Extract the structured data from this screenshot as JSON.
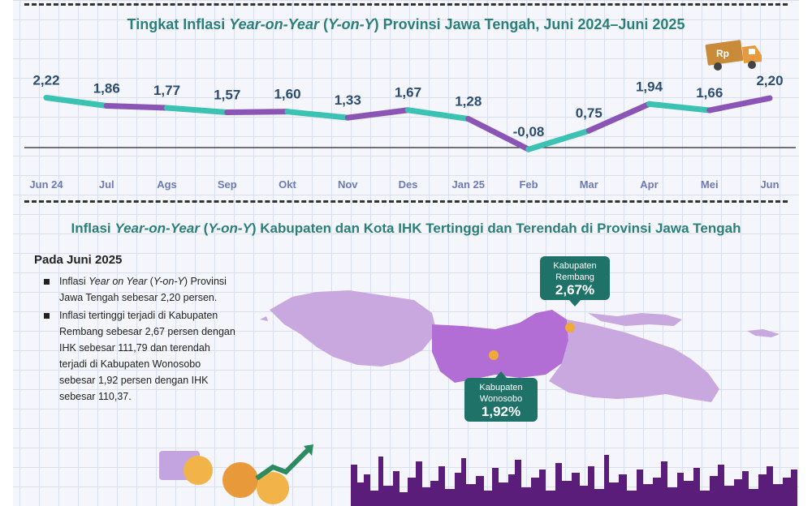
{
  "chart_title": {
    "pre": "Tingkat Inflasi ",
    "italic1": "Year-on-Year",
    "mid": " (",
    "italic2": "Y-on-Y",
    "post": ") Provinsi Jawa Tengah, Juni 2024–Juni 2025"
  },
  "section_title": {
    "pre": "Inflasi ",
    "italic1": "Year-on-Year",
    "mid": " (",
    "italic2": "Y-on-Y",
    "post": ") Kabupaten dan Kota IHK Tertinggi dan Terendah di Provinsi Jawa Tengah"
  },
  "info": {
    "heading": "Pada Juni 2025",
    "bullet1_pre": "Inflasi ",
    "bullet1_italic": "Year on Year",
    "bullet1_mid": " (",
    "bullet1_italic2": "Y-on-Y",
    "bullet1_post": ") Provinsi Jawa Tengah sebesar 2,20 persen.",
    "bullet2": "Inflasi tertinggi terjadi di Kabupaten Rembang sebesar 2,67 persen dengan IHK sebesar 111,79 dan terendah terjadi di Kabupaten Wonosobo sebesar 1,92 persen dengan IHK sebesar 110,37."
  },
  "callouts": {
    "high": {
      "name_line1": "Kabupaten",
      "name_line2": "Rembang",
      "value": "2,67%"
    },
    "low": {
      "name_line1": "Kabupaten",
      "name_line2": "Wonosobo",
      "value": "1,92%"
    }
  },
  "truck_label": "Rp",
  "colors": {
    "teal": "#3cc2b3",
    "purple": "#8a55b5",
    "title": "#2a7f7a",
    "callout": "#1f7268",
    "map_light": "#c9a8e0",
    "map_dark": "#b36ed6"
  },
  "chart_data": {
    "type": "line",
    "categories": [
      "Jun 24",
      "Jul",
      "Ags",
      "Sep",
      "Okt",
      "Nov",
      "Des",
      "Jan 25",
      "Feb",
      "Mar",
      "Apr",
      "Mei",
      "Jun"
    ],
    "values": [
      2.22,
      1.86,
      1.77,
      1.57,
      1.6,
      1.33,
      1.67,
      1.28,
      -0.08,
      0.75,
      1.94,
      1.66,
      2.2
    ],
    "labels": [
      "2,22",
      "1,86",
      "1,77",
      "1,57",
      "1,60",
      "1,33",
      "1,67",
      "1,28",
      "-0,08",
      "0,75",
      "1,94",
      "1,66",
      "2,20"
    ],
    "segment_colors": [
      "teal",
      "purple",
      "teal",
      "purple",
      "teal",
      "purple",
      "teal",
      "purple",
      "teal",
      "purple",
      "teal",
      "purple"
    ],
    "zero_line": true
  }
}
